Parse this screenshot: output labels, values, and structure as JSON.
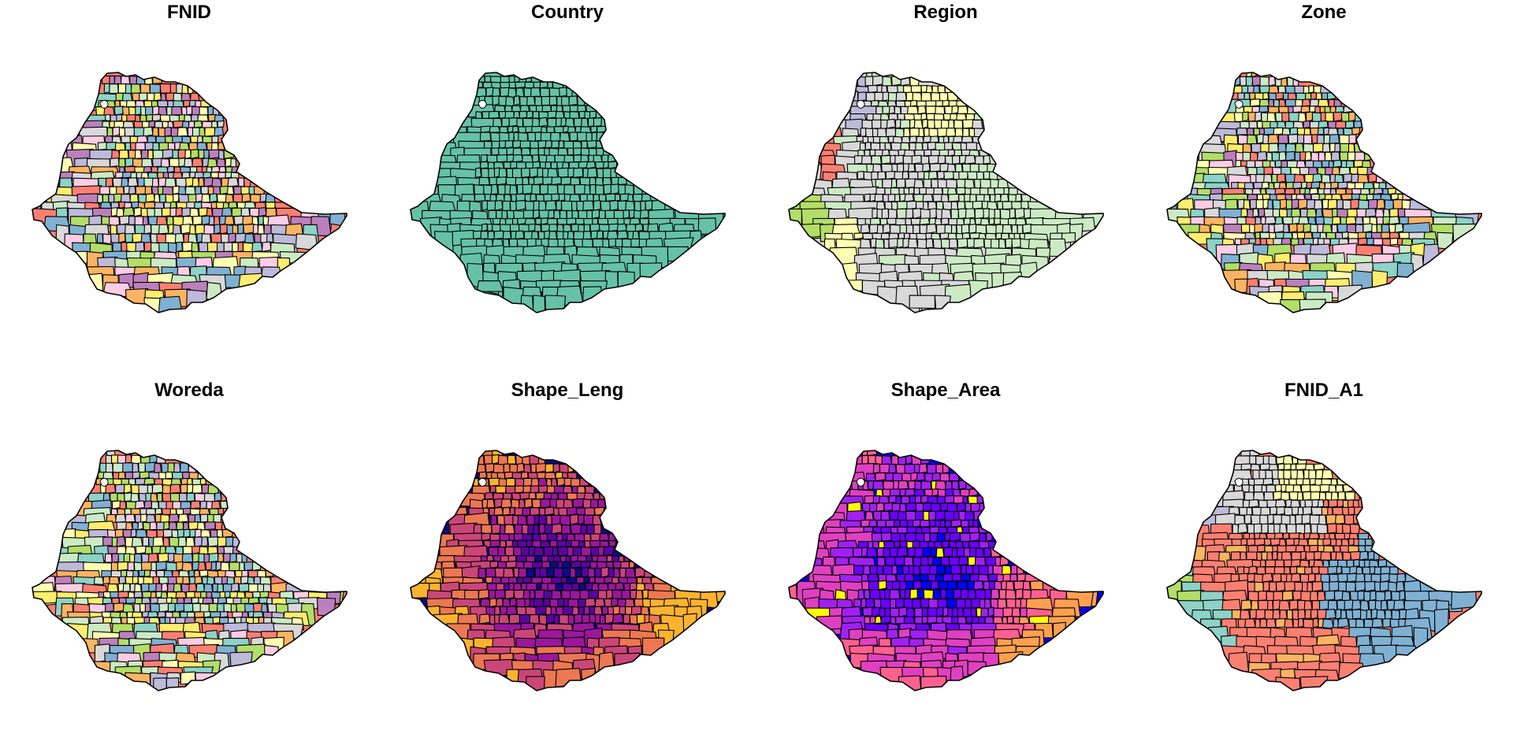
{
  "figure": {
    "panels": [
      {
        "title": "FNID",
        "palette": [
          "#8DD3C7",
          "#FFFFB3",
          "#BEBADA",
          "#FB8072",
          "#80B1D3",
          "#FDB462",
          "#B3DE69",
          "#FCCDE5",
          "#D9D9D9",
          "#BC80BD",
          "#CCEBC5",
          "#FFED6F"
        ],
        "style": "mosaic"
      },
      {
        "title": "Country",
        "palette": [
          "#66C2A5"
        ],
        "style": "single"
      },
      {
        "title": "Region",
        "palette": [
          "#FFFFB3",
          "#D9D9D9",
          "#BEBADA",
          "#FB8072",
          "#CCEBC5",
          "#B3DE69"
        ],
        "style": "region"
      },
      {
        "title": "Zone",
        "palette": [
          "#8DD3C7",
          "#FFFFB3",
          "#BEBADA",
          "#FB8072",
          "#80B1D3",
          "#FDB462",
          "#B3DE69",
          "#FCCDE5",
          "#D9D9D9",
          "#BC80BD",
          "#CCEBC5",
          "#FFED6F"
        ],
        "style": "mosaic"
      },
      {
        "title": "Woreda",
        "palette": [
          "#8DD3C7",
          "#FFFFB3",
          "#BEBADA",
          "#FB8072",
          "#80B1D3",
          "#FDB462",
          "#B3DE69",
          "#FCCDE5",
          "#D9D9D9",
          "#BC80BD",
          "#CCEBC5",
          "#FFED6F"
        ],
        "style": "mosaic"
      },
      {
        "title": "Shape_Leng",
        "palette": [
          "#0D0887",
          "#5B02A3",
          "#9A179B",
          "#CB4678",
          "#EB7852",
          "#FBB32F",
          "#F0F921"
        ],
        "style": "leng"
      },
      {
        "title": "Shape_Area",
        "palette": [
          "#0000FF",
          "#6A00FF",
          "#A020F0",
          "#E040C0",
          "#FF6090",
          "#FFA050",
          "#FFFF00"
        ],
        "style": "area"
      },
      {
        "title": "FNID_A1",
        "palette": [
          "#FFFFB3",
          "#D9D9D9",
          "#BEBADA",
          "#FB8072",
          "#80B1D3",
          "#8DD3C7",
          "#B3DE69",
          "#FDB462"
        ],
        "style": "a1"
      }
    ]
  }
}
